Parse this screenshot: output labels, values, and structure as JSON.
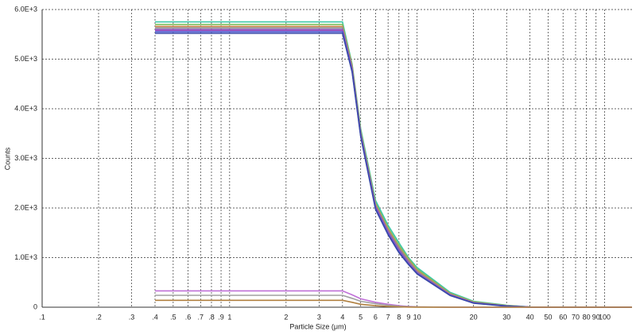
{
  "chart_data": {
    "type": "line",
    "x_label": "Particle Size (μm)",
    "y_label": "Counts",
    "x_scale": "log",
    "grid": true,
    "xlim": [
      0.1,
      140
    ],
    "ylim": [
      0,
      6000
    ],
    "xticks": [
      {
        "value": 0.1,
        "label": ".1"
      },
      {
        "value": 0.2,
        "label": ".2"
      },
      {
        "value": 0.3,
        "label": ".3"
      },
      {
        "value": 0.4,
        "label": ".4"
      },
      {
        "value": 0.5,
        "label": ".5"
      },
      {
        "value": 0.6,
        "label": ".6"
      },
      {
        "value": 0.7,
        "label": ".7"
      },
      {
        "value": 0.8,
        "label": ".8"
      },
      {
        "value": 0.9,
        "label": ".9"
      },
      1,
      2,
      3,
      4,
      5,
      6,
      7,
      8,
      9,
      10,
      20,
      30,
      40,
      50,
      60,
      70,
      80,
      90,
      100
    ],
    "yticks": [
      {
        "value": 0,
        "label": "0"
      },
      {
        "value": 1000,
        "label": "1.0E+3"
      },
      {
        "value": 2000,
        "label": "2.0E+3"
      },
      {
        "value": 3000,
        "label": "3.0E+3"
      },
      {
        "value": 4000,
        "label": "4.0E+3"
      },
      {
        "value": 5000,
        "label": "5.0E+3"
      },
      {
        "value": 6000,
        "label": "6.0E+3"
      }
    ],
    "x": [
      0.4,
      4,
      4.5,
      5,
      6,
      7,
      8,
      9,
      10,
      15,
      20,
      30,
      40,
      100,
      140
    ],
    "series": [
      {
        "color": "#3cc8a8",
        "values": [
          5750,
          5750,
          4900,
          3600,
          2150,
          1650,
          1300,
          1000,
          800,
          300,
          120,
          40,
          5,
          0,
          0
        ]
      },
      {
        "color": "#80c060",
        "values": [
          5700,
          5700,
          4880,
          3560,
          2100,
          1600,
          1250,
          980,
          770,
          280,
          110,
          35,
          5,
          0,
          0
        ]
      },
      {
        "color": "#d08850",
        "values": [
          5660,
          5660,
          4850,
          3530,
          2070,
          1570,
          1210,
          950,
          740,
          270,
          100,
          30,
          4,
          0,
          0
        ]
      },
      {
        "color": "#909090",
        "values": [
          5630,
          5630,
          4820,
          3510,
          2050,
          1540,
          1190,
          930,
          720,
          260,
          95,
          28,
          3,
          0,
          0
        ]
      },
      {
        "color": "#8a5ab8",
        "values": [
          5600,
          5600,
          4800,
          3490,
          2030,
          1520,
          1160,
          900,
          700,
          250,
          90,
          25,
          3,
          0,
          0
        ]
      },
      {
        "color": "#a050c0",
        "values": [
          5580,
          5580,
          4780,
          3480,
          2010,
          1500,
          1140,
          890,
          690,
          245,
          88,
          24,
          3,
          0,
          0
        ]
      },
      {
        "color": "#4a5ad0",
        "values": [
          5550,
          5550,
          4760,
          3460,
          1990,
          1480,
          1120,
          870,
          680,
          240,
          85,
          22,
          2,
          0,
          0
        ]
      },
      {
        "color": "#3a48a8",
        "values": [
          5520,
          5520,
          4740,
          3440,
          1970,
          1460,
          1100,
          860,
          670,
          235,
          82,
          20,
          2,
          0,
          0
        ]
      },
      {
        "color": "#c070d8",
        "values": [
          330,
          330,
          250,
          170,
          100,
          60,
          30,
          15,
          8,
          0,
          0,
          0,
          0,
          0,
          0
        ]
      },
      {
        "color": "#a0a0a0",
        "values": [
          240,
          240,
          180,
          120,
          70,
          40,
          20,
          10,
          5,
          0,
          0,
          0,
          0,
          0,
          0
        ]
      },
      {
        "color": "#b08040",
        "values": [
          140,
          140,
          100,
          60,
          30,
          15,
          8,
          4,
          2,
          0,
          0,
          0,
          0,
          0,
          0
        ]
      }
    ]
  }
}
